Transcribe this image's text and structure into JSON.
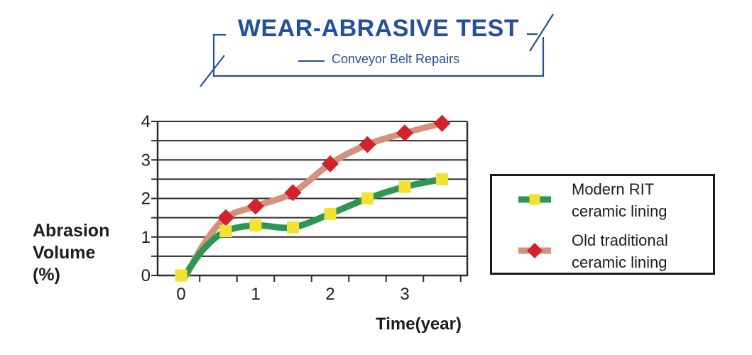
{
  "theme": {
    "accent_color": "#24509b",
    "text_color": "#1d1d1b",
    "grid_color": "#2d2d2d",
    "legend_border_color": "#1a1a1a",
    "background_color": "#ffffff"
  },
  "header": {
    "title": "WEAR-ABRASIVE TEST",
    "subtitle": "Conveyor Belt Repairs"
  },
  "chart_data": {
    "type": "line",
    "title": "WEAR-ABRASIVE TEST",
    "subtitle": "Conveyor Belt Repairs",
    "xlabel": "Time(year)",
    "ylabel": "Abrasion Volume (%)",
    "ylabel_lines": [
      "Abrasion",
      "Volume",
      "(%)"
    ],
    "xlim": [
      -0.3,
      3.85
    ],
    "ylim": [
      0,
      4
    ],
    "x_ticks": [
      0,
      1,
      2,
      3
    ],
    "x_minor_ticks": [
      0.25,
      0.75,
      1.25,
      1.75,
      2.25,
      2.75,
      3.25,
      3.75
    ],
    "y_ticks": [
      0,
      1,
      2,
      3,
      4
    ],
    "y_gridline_step": 0.5,
    "grid": "on",
    "legend_position": "right",
    "series": [
      {
        "name": "Modern RIT ceramic lining",
        "line_color": "#2d9652",
        "marker": "square",
        "marker_color": "#f2e232",
        "points": [
          [
            0,
            0
          ],
          [
            0.6,
            1.15
          ],
          [
            1,
            1.3
          ],
          [
            1.5,
            1.25
          ],
          [
            2,
            1.6
          ],
          [
            2.5,
            2.0
          ],
          [
            3,
            2.3
          ],
          [
            3.5,
            2.5
          ]
        ],
        "marker_points": [
          [
            0,
            0
          ],
          [
            0.6,
            1.15
          ],
          [
            1,
            1.3
          ],
          [
            1.5,
            1.25
          ],
          [
            2,
            1.6
          ],
          [
            2.5,
            2.0
          ],
          [
            3,
            2.3
          ],
          [
            3.5,
            2.5
          ]
        ],
        "curve_points": [
          [
            0.05,
            0
          ],
          [
            0.3,
            0.68
          ],
          [
            0.6,
            1.15
          ],
          [
            1,
            1.3
          ],
          [
            1.5,
            1.25
          ],
          [
            2,
            1.6
          ],
          [
            2.5,
            2.0
          ],
          [
            3,
            2.3
          ],
          [
            3.5,
            2.5
          ]
        ]
      },
      {
        "name": "Old traditional ceramic lining",
        "line_color": "#d6917c",
        "marker": "diamond",
        "marker_color": "#d2222a",
        "points": [
          [
            0,
            0
          ],
          [
            0.6,
            1.5
          ],
          [
            1,
            1.8
          ],
          [
            1.5,
            2.15
          ],
          [
            2,
            2.9
          ],
          [
            2.5,
            3.4
          ],
          [
            3,
            3.7
          ],
          [
            3.5,
            3.95
          ]
        ],
        "marker_points": [
          [
            0.6,
            1.5
          ],
          [
            1,
            1.8
          ],
          [
            1.5,
            2.15
          ],
          [
            2,
            2.9
          ],
          [
            2.5,
            3.4
          ],
          [
            3,
            3.7
          ],
          [
            3.5,
            3.95
          ]
        ],
        "curve_points": [
          [
            0.07,
            0
          ],
          [
            0.3,
            0.8
          ],
          [
            0.6,
            1.5
          ],
          [
            1,
            1.8
          ],
          [
            1.5,
            2.15
          ],
          [
            2,
            2.9
          ],
          [
            2.5,
            3.4
          ],
          [
            3,
            3.7
          ],
          [
            3.5,
            3.95
          ]
        ]
      }
    ]
  },
  "legend": {
    "items": [
      {
        "line1": "Modern RIT",
        "line2": "ceramic lining"
      },
      {
        "line1": "Old traditional",
        "line2": "ceramic lining"
      }
    ]
  }
}
